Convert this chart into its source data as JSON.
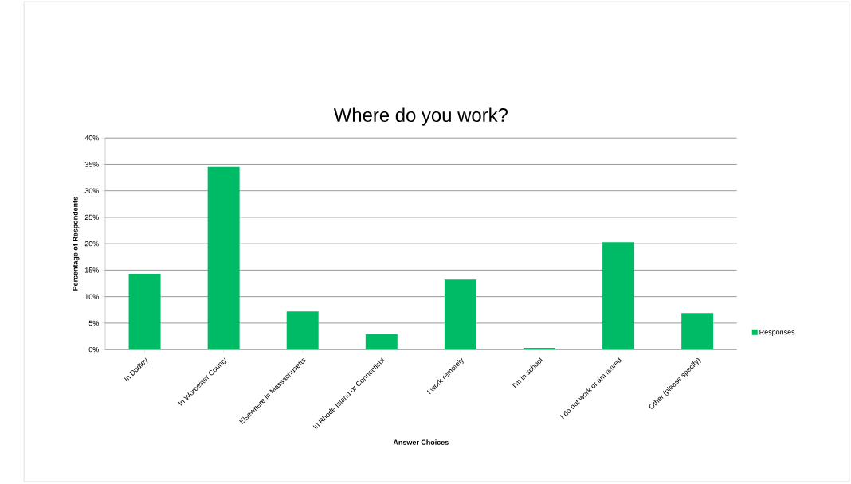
{
  "chart_data": {
    "type": "bar",
    "title": "Where do you work?",
    "xlabel": "Answer Choices",
    "ylabel": "Percentage of Respondents",
    "categories": [
      "In Dudley",
      "In Worcester County",
      "Elsewhere in Massachusetts",
      "In Rhode Island or Connecticut",
      "I work remotely",
      "I'm in school",
      "I do not work or am retired",
      "Other (please specify)"
    ],
    "series": [
      {
        "name": "Responses",
        "color": "#00bb66",
        "values": [
          14.3,
          34.5,
          7.2,
          2.9,
          13.2,
          0.3,
          20.3,
          6.9
        ]
      }
    ],
    "ylim": [
      0,
      40
    ],
    "yticks": [
      {
        "value": 0,
        "label": "0%"
      },
      {
        "value": 5,
        "label": "5%"
      },
      {
        "value": 10,
        "label": "10%"
      },
      {
        "value": 15,
        "label": "15%"
      },
      {
        "value": 20,
        "label": "20%"
      },
      {
        "value": 25,
        "label": "25%"
      },
      {
        "value": 30,
        "label": "30%"
      },
      {
        "value": 35,
        "label": "35%"
      },
      {
        "value": 40,
        "label": "40%"
      }
    ],
    "grid": "y",
    "legend": "right"
  }
}
